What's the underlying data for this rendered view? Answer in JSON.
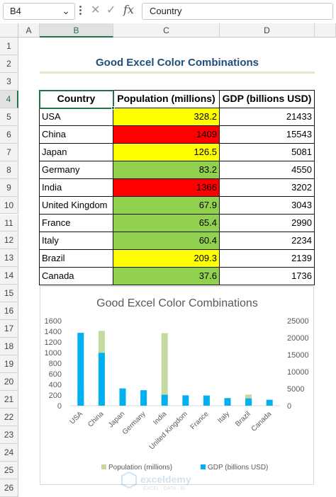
{
  "formula_bar": {
    "name_box": "B4",
    "fx_label": "fx",
    "cancel_icon": "cancel-icon",
    "enter_icon": "check-icon",
    "content": "Country"
  },
  "columns": [
    "A",
    "B",
    "C",
    "D"
  ],
  "rows": [
    "1",
    "2",
    "3",
    "4",
    "5",
    "6",
    "7",
    "8",
    "9",
    "10",
    "11",
    "12",
    "13",
    "14",
    "15",
    "16",
    "17",
    "18",
    "19",
    "20",
    "21",
    "22",
    "23",
    "24",
    "25",
    "26"
  ],
  "sheet_title": "Good Excel Color Combinations",
  "table": {
    "headers": [
      "Country",
      "Population (millions)",
      "GDP (billions USD)"
    ],
    "rows": [
      {
        "country": "USA",
        "population": "328.2",
        "gdp": "21433",
        "fill": "#ffff00"
      },
      {
        "country": "China",
        "population": "1409",
        "gdp": "15543",
        "fill": "#ff0000"
      },
      {
        "country": "Japan",
        "population": "126.5",
        "gdp": "5081",
        "fill": "#ffff00"
      },
      {
        "country": "Germany",
        "population": "83.2",
        "gdp": "4550",
        "fill": "#92d050"
      },
      {
        "country": "India",
        "population": "1366",
        "gdp": "3202",
        "fill": "#ff0000"
      },
      {
        "country": "United Kingdom",
        "population": "67.9",
        "gdp": "3043",
        "fill": "#92d050"
      },
      {
        "country": "France",
        "population": "65.4",
        "gdp": "2990",
        "fill": "#92d050"
      },
      {
        "country": "Italy",
        "population": "60.4",
        "gdp": "2234",
        "fill": "#92d050"
      },
      {
        "country": "Brazil",
        "population": "209.3",
        "gdp": "2139",
        "fill": "#ffff00"
      },
      {
        "country": "Canada",
        "population": "37.6",
        "gdp": "1736",
        "fill": "#92d050"
      }
    ]
  },
  "chart_data": {
    "type": "bar",
    "title": "Good Excel Color Combinations",
    "categories": [
      "USA",
      "China",
      "Japan",
      "Germany",
      "India",
      "United Kingdom",
      "France",
      "Italy",
      "Brazil",
      "Canada"
    ],
    "series": [
      {
        "name": "Population (millions)",
        "axis": "primary",
        "color": "#c5d9a0",
        "values": [
          328.2,
          1409,
          126.5,
          83.2,
          1366,
          67.9,
          65.4,
          60.4,
          209.3,
          37.6
        ]
      },
      {
        "name": "GDP (billions USD)",
        "axis": "secondary",
        "color": "#00b0f0",
        "values": [
          21433,
          15543,
          5081,
          4550,
          3202,
          3043,
          2990,
          2234,
          2139,
          1736
        ]
      }
    ],
    "y_ticks": [
      "0",
      "200",
      "400",
      "600",
      "800",
      "1000",
      "1200",
      "1400",
      "1600"
    ],
    "y2_ticks": [
      "0",
      "5000",
      "10000",
      "15000",
      "20000",
      "25000"
    ],
    "ylim": [
      0,
      1600
    ],
    "y2lim": [
      0,
      25000
    ],
    "grid": false,
    "legend_position": "bottom"
  },
  "watermark_text": "exceldemy",
  "watermark_sub": "EXCEL · DATA · BI"
}
